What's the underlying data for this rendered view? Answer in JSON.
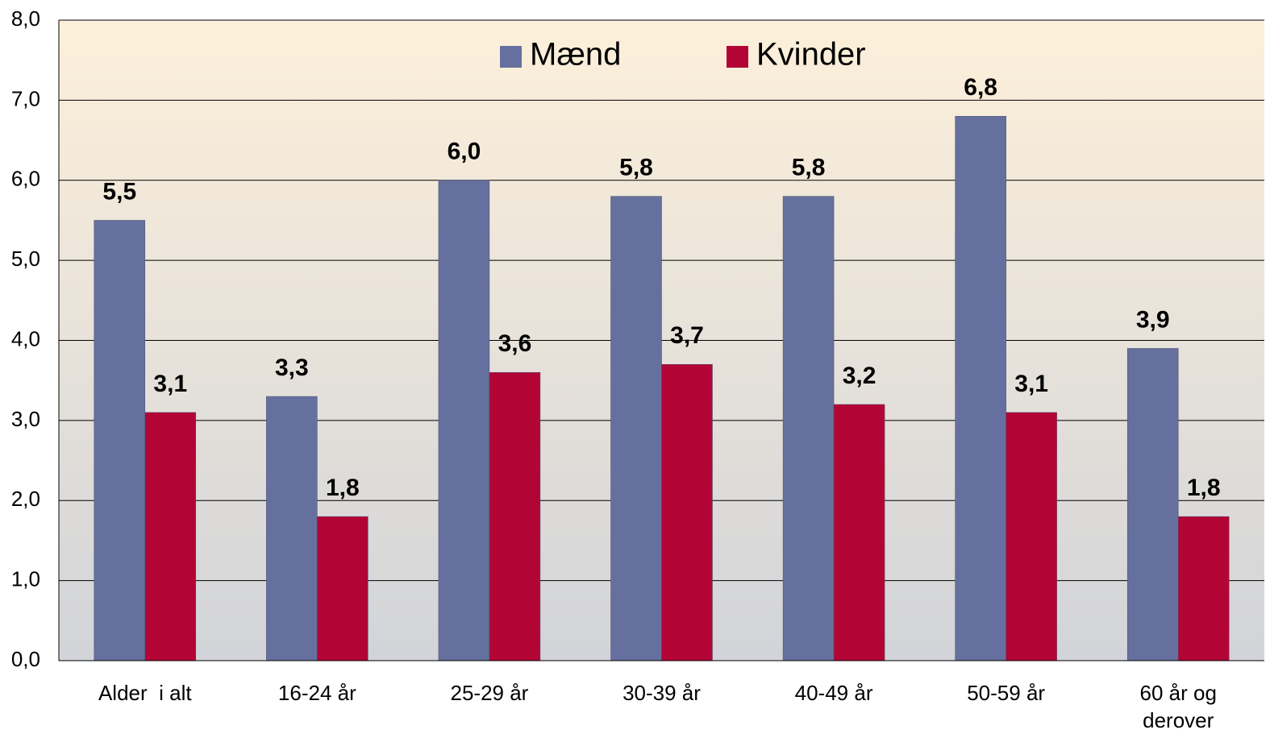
{
  "chart_data": {
    "type": "bar",
    "categories": [
      "Alder  i alt",
      "16-24 år",
      "25-29 år",
      "30-39 år",
      "40-49 år",
      "50-59 år",
      "60 år og derover"
    ],
    "series": [
      {
        "name": "Mænd",
        "color": "#66709e",
        "values": [
          5.5,
          3.3,
          6.0,
          5.8,
          5.8,
          6.8,
          3.9
        ],
        "value_labels": [
          "5,5",
          "3,3",
          "6,0",
          "5,8",
          "5,8",
          "6,8",
          "3,9"
        ]
      },
      {
        "name": "Kvinder",
        "color": "#b30535",
        "values": [
          3.1,
          1.8,
          3.6,
          3.7,
          3.2,
          3.1,
          1.8
        ],
        "value_labels": [
          "3,1",
          "1,8",
          "3,6",
          "3,7",
          "3,2",
          "3,1",
          "1,8"
        ]
      }
    ],
    "ylim": [
      0,
      8
    ],
    "yticks": [
      {
        "value": 0,
        "label": "0,0"
      },
      {
        "value": 1,
        "label": "1,0"
      },
      {
        "value": 2,
        "label": "2,0"
      },
      {
        "value": 3,
        "label": "3,0"
      },
      {
        "value": 4,
        "label": "4,0"
      },
      {
        "value": 5,
        "label": "5,0"
      },
      {
        "value": 6,
        "label": "6,0"
      },
      {
        "value": 7,
        "label": "7,0"
      },
      {
        "value": 8,
        "label": "8,0"
      }
    ],
    "grid": true,
    "legend": "top"
  }
}
